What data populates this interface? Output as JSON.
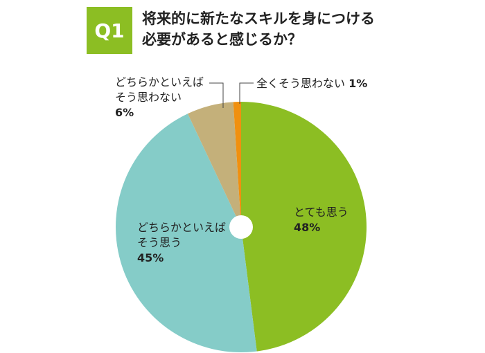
{
  "question_number": "Q1",
  "chart_data": {
    "type": "pie",
    "title": "将来的に新たなスキルを身につける必要があると感じるか？",
    "categories": [
      "とても思う",
      "どちらかといえばそう思う",
      "どちらかといえばそう思わない",
      "全くそう思わない"
    ],
    "values": [
      48,
      45,
      6,
      1
    ],
    "value_labels": [
      "48%",
      "45%",
      "6%",
      "1%"
    ],
    "colors": [
      "#8cbe23",
      "#85ccc8",
      "#c4b07a",
      "#f0900f"
    ]
  }
}
